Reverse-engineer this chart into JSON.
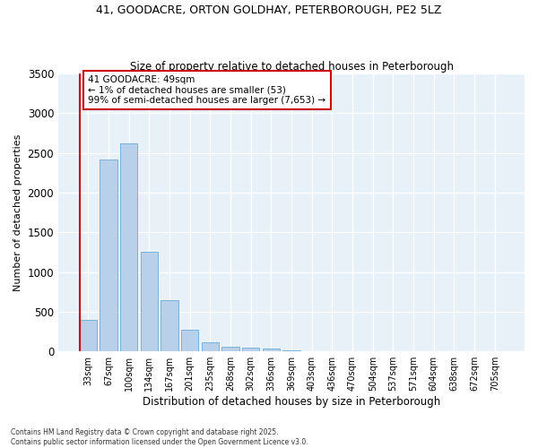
{
  "title_line1": "41, GOODACRE, ORTON GOLDHAY, PETERBOROUGH, PE2 5LZ",
  "title_line2": "Size of property relative to detached houses in Peterborough",
  "xlabel": "Distribution of detached houses by size in Peterborough",
  "ylabel": "Number of detached properties",
  "categories": [
    "33sqm",
    "67sqm",
    "100sqm",
    "134sqm",
    "167sqm",
    "201sqm",
    "235sqm",
    "268sqm",
    "302sqm",
    "336sqm",
    "369sqm",
    "403sqm",
    "436sqm",
    "470sqm",
    "504sqm",
    "537sqm",
    "571sqm",
    "604sqm",
    "638sqm",
    "672sqm",
    "705sqm"
  ],
  "values": [
    400,
    2420,
    2620,
    1250,
    645,
    270,
    110,
    55,
    45,
    40,
    15,
    0,
    0,
    0,
    0,
    0,
    0,
    0,
    0,
    0,
    0
  ],
  "bar_color": "#b8d0ea",
  "bar_edge_color": "#6aaad4",
  "annotation_text": "41 GOODACRE: 49sqm\n← 1% of detached houses are smaller (53)\n99% of semi-detached houses are larger (7,653) →",
  "annotation_box_color": "#ffffff",
  "annotation_box_edge": "#cc0000",
  "marker_line_color": "#cc0000",
  "ylim": [
    0,
    3500
  ],
  "yticks": [
    0,
    500,
    1000,
    1500,
    2000,
    2500,
    3000,
    3500
  ],
  "plot_bg_color": "#e8f0f8",
  "fig_bg_color": "#ffffff",
  "grid_color": "#ffffff",
  "footnote": "Contains HM Land Registry data © Crown copyright and database right 2025.\nContains public sector information licensed under the Open Government Licence v3.0."
}
